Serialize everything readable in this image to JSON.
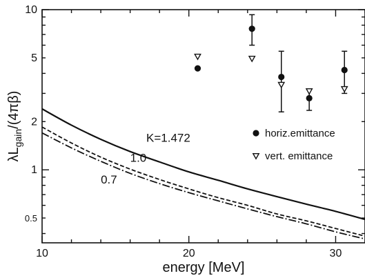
{
  "chart_data": {
    "type": "line",
    "title": "",
    "xlabel": "energy  [MeV]",
    "ylabel": "λL",
    "ylabel_sub": "gain",
    "ylabel_rest": "/(4πβ)",
    "xlim": [
      10,
      32
    ],
    "ylim": [
      0.35,
      10
    ],
    "yscale": "log",
    "grid": false,
    "x_ticks": [
      10,
      20,
      30
    ],
    "y_ticks_major": [
      1,
      10
    ],
    "y_ticks_labeled": [
      {
        "value": 10,
        "label": "10"
      },
      {
        "value": 5,
        "label": "5"
      },
      {
        "value": 2,
        "label": "2"
      },
      {
        "value": 1,
        "label": "1"
      },
      {
        "value": 0.5,
        "label": "0.5"
      }
    ],
    "x_tick_labels": [
      "10",
      "20",
      "30"
    ],
    "series": [
      {
        "name": "K=1.472",
        "style": "solid",
        "x": [
          10,
          12,
          14,
          16,
          18,
          20,
          22,
          24,
          26,
          28,
          30,
          32
        ],
        "y": [
          2.4,
          1.9,
          1.55,
          1.3,
          1.12,
          0.97,
          0.86,
          0.76,
          0.68,
          0.61,
          0.55,
          0.49
        ]
      },
      {
        "name": "1.0",
        "style": "dashed",
        "x": [
          10,
          12,
          14,
          16,
          18,
          20,
          22,
          24,
          26,
          28,
          30,
          32
        ],
        "y": [
          1.85,
          1.47,
          1.2,
          1.01,
          0.87,
          0.76,
          0.67,
          0.6,
          0.53,
          0.48,
          0.43,
          0.385
        ]
      },
      {
        "name": "0.7",
        "style": "dashdot",
        "x": [
          10,
          12,
          14,
          16,
          18,
          20,
          22,
          24,
          26,
          28,
          30,
          32
        ],
        "y": [
          1.7,
          1.37,
          1.13,
          0.95,
          0.82,
          0.72,
          0.64,
          0.57,
          0.51,
          0.46,
          0.41,
          0.37
        ]
      }
    ],
    "curve_labels": [
      {
        "text": "K=1.472",
        "x": 17.1,
        "y": 1.5
      },
      {
        "text": "1.0",
        "x": 16.0,
        "y": 1.12
      },
      {
        "text": "0.7",
        "x": 14.0,
        "y": 0.82
      }
    ],
    "scatter": [
      {
        "name": "horiz.emittance",
        "marker": "circle",
        "points": [
          {
            "x": 20.6,
            "y": 4.3,
            "err": [
              4.3,
              4.3
            ]
          },
          {
            "x": 24.3,
            "y": 7.6,
            "err": [
              6.0,
              9.3
            ]
          },
          {
            "x": 26.3,
            "y": 3.8,
            "err": [
              2.3,
              5.5
            ]
          },
          {
            "x": 28.2,
            "y": 2.8,
            "err": [
              2.35,
              3.2
            ]
          },
          {
            "x": 30.6,
            "y": 4.2,
            "err": [
              3.0,
              5.5
            ]
          }
        ]
      },
      {
        "name": "vert. emittance",
        "marker": "triangle-down",
        "points": [
          {
            "x": 20.6,
            "y": 5.1
          },
          {
            "x": 24.3,
            "y": 4.95
          },
          {
            "x": 26.3,
            "y": 3.4
          },
          {
            "x": 28.2,
            "y": 3.1
          },
          {
            "x": 30.6,
            "y": 3.2
          }
        ]
      }
    ],
    "legend": {
      "placement": "right",
      "entries": [
        {
          "text": "horiz.emittance",
          "marker": "circle"
        },
        {
          "text": "vert. emittance",
          "marker": "triangle-down"
        }
      ]
    }
  }
}
